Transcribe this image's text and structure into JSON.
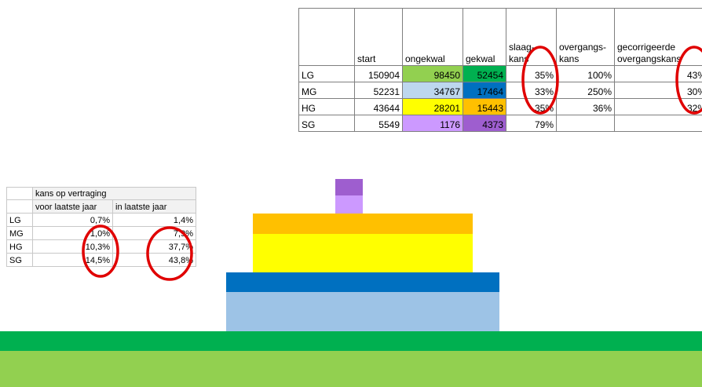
{
  "top_table": {
    "headers": [
      [
        "start"
      ],
      [
        "ongekwal"
      ],
      [
        "gekwal"
      ],
      [
        "slaag-",
        "kans"
      ],
      [
        "overgangs-",
        "kans"
      ],
      [
        "gecorrigeerde",
        "overgangskans"
      ]
    ],
    "rows": [
      {
        "label": "LG",
        "cells": [
          "150904",
          "98450",
          "52454",
          "35%",
          "100%",
          "43%"
        ]
      },
      {
        "label": "MG",
        "cells": [
          "52231",
          "34767",
          "17464",
          "33%",
          "250%",
          "30%"
        ]
      },
      {
        "label": "HG",
        "cells": [
          "43644",
          "28201",
          "15443",
          "35%",
          "36%",
          "32%"
        ]
      },
      {
        "label": "SG",
        "cells": [
          "5549",
          "1176",
          "4373",
          "79%"
        ]
      }
    ]
  },
  "left_table": {
    "title": "kans op vertraging",
    "headers": [
      "voor laatste jaar",
      "in laatste jaar"
    ],
    "rows": [
      {
        "label": "LG",
        "cells": [
          "0,7%",
          "1,4%"
        ]
      },
      {
        "label": "MG",
        "cells": [
          "1,0%",
          "7,9%"
        ]
      },
      {
        "label": "HG",
        "cells": [
          "10,3%",
          "37,7%"
        ]
      },
      {
        "label": "SG",
        "cells": [
          "14,5%",
          "43,8%"
        ]
      }
    ]
  }
}
